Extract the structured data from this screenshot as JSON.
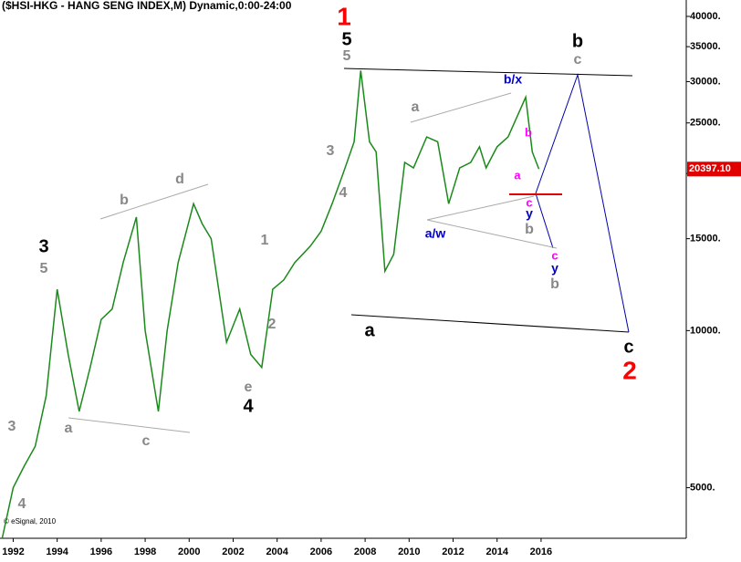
{
  "chart_data": {
    "type": "line",
    "title": "($HSI-HKG - HANG SENG INDEX,M) Dynamic,0:00-24:00",
    "credit": "© eSignal, 2010",
    "log_scale": true,
    "color": "#1a8a1a",
    "x": [
      1991.5,
      1992,
      1992.5,
      1993,
      1993.5,
      1994,
      1994.5,
      1995,
      1995.5,
      1996,
      1996.5,
      1997,
      1997.6,
      1998,
      1998.6,
      1999,
      1999.5,
      2000.2,
      2000.6,
      2001,
      2001.7,
      2002.3,
      2002.8,
      2003.3,
      2003.8,
      2004.3,
      2004.8,
      2005.5,
      2006,
      2006.5,
      2007,
      2007.5,
      2007.8,
      2008.2,
      2008.5,
      2008.9,
      2009.3,
      2009.8,
      2010.2,
      2010.8,
      2011.3,
      2011.8,
      2012.3,
      2012.8,
      2013.2,
      2013.5,
      2014,
      2014.5,
      2015.3,
      2015.6,
      2015.9
    ],
    "values": [
      4000,
      5000,
      5500,
      6000,
      7500,
      12000,
      9000,
      7000,
      8500,
      10500,
      11000,
      13500,
      16500,
      10000,
      7000,
      10000,
      13500,
      17500,
      16000,
      15000,
      9500,
      11000,
      9000,
      8500,
      12000,
      12500,
      13500,
      14500,
      15500,
      17500,
      20000,
      23000,
      31500,
      23000,
      22000,
      13000,
      14000,
      21000,
      20500,
      23500,
      23000,
      17500,
      20500,
      21000,
      22500,
      20500,
      22500,
      23500,
      28000,
      22000,
      20397.1
    ],
    "xlim": [
      1991.4,
      2022.6
    ],
    "xticks": [
      1992,
      1994,
      1996,
      1998,
      2000,
      2002,
      2004,
      2006,
      2008,
      2010,
      2012,
      2014,
      2016
    ],
    "ylim": [
      4000,
      43000
    ],
    "yticks": [
      {
        "value": 5000,
        "label": "5000."
      },
      {
        "value": 10000,
        "label": "10000."
      },
      {
        "value": 15000,
        "label": "15000."
      },
      {
        "value": 20000,
        "label": "20000."
      },
      {
        "value": 25000,
        "label": "25000."
      },
      {
        "value": 30000,
        "label": "30000."
      },
      {
        "value": 35000,
        "label": "35000."
      },
      {
        "value": 40000,
        "label": "40000."
      }
    ],
    "last_value": {
      "value": 20397.1,
      "label": "20397.10"
    },
    "annotations": [
      {
        "text": "1",
        "color": "#ff0000"
      },
      {
        "text": "5",
        "color": "#000000"
      },
      {
        "text": "5",
        "color": "#888888"
      },
      {
        "text": "b",
        "color": "#000000"
      },
      {
        "text": "c",
        "color": "#888888"
      },
      {
        "text": "b/x",
        "color": "#0000cc"
      },
      {
        "text": "a",
        "color": "#888888"
      },
      {
        "text": "b",
        "color": "#ff00ff"
      },
      {
        "text": "3",
        "color": "#888888"
      },
      {
        "text": "a",
        "color": "#ff00ff"
      },
      {
        "text": "4",
        "color": "#888888"
      },
      {
        "text": "d",
        "color": "#888888"
      },
      {
        "text": "b",
        "color": "#888888"
      },
      {
        "text": "c",
        "color": "#ff00ff"
      },
      {
        "text": "y",
        "color": "#0000cc"
      },
      {
        "text": "b",
        "color": "#888888"
      },
      {
        "text": "a/w",
        "color": "#0000cc"
      },
      {
        "text": "1",
        "color": "#888888"
      },
      {
        "text": "3",
        "color": "#000000"
      },
      {
        "text": "5",
        "color": "#888888"
      },
      {
        "text": "c",
        "color": "#ff00ff"
      },
      {
        "text": "y",
        "color": "#0000cc"
      },
      {
        "text": "b",
        "color": "#888888"
      },
      {
        "text": "2",
        "color": "#888888"
      },
      {
        "text": "a",
        "color": "#000000"
      },
      {
        "text": "c",
        "color": "#000000"
      },
      {
        "text": "2",
        "color": "#ff0000"
      },
      {
        "text": "e",
        "color": "#888888"
      },
      {
        "text": "4",
        "color": "#000000"
      },
      {
        "text": "3",
        "color": "#888888"
      },
      {
        "text": "a",
        "color": "#888888"
      },
      {
        "text": "c",
        "color": "#888888"
      },
      {
        "text": "4",
        "color": "#888888"
      }
    ]
  }
}
